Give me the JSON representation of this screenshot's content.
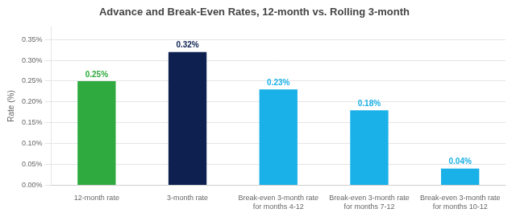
{
  "chart_data": {
    "type": "bar",
    "title": "Advance and Break-Even Rates, 12-month vs. Rolling 3-month",
    "categories": [
      "12-month rate",
      "3-month rate",
      "Break-even 3-month rate\nfor months 4-12",
      "Break-even 3-month rate\nfor months 7-12",
      "Break-even 3-month rate\nfor months 10-12"
    ],
    "values": [
      0.0025,
      0.0032,
      0.0023,
      0.0018,
      0.0004
    ],
    "value_labels": [
      "0.25%",
      "0.32%",
      "0.23%",
      "0.18%",
      "0.04%"
    ],
    "data_labels": true,
    "colors": [
      "#2eaa3e",
      "#0d2050",
      "#1ab0e8",
      "#1ab0e8",
      "#1ab0e8"
    ],
    "ylabel": "Rate (%)",
    "ylim": [
      0,
      0.0038
    ],
    "yticks": [
      {
        "value": 0.0,
        "label": "0.00%"
      },
      {
        "value": 0.0005,
        "label": "0.05%"
      },
      {
        "value": 0.001,
        "label": "0.10%"
      },
      {
        "value": 0.0015,
        "label": "0.15%"
      },
      {
        "value": 0.002,
        "label": "0.20%"
      },
      {
        "value": 0.0025,
        "label": "0.25%"
      },
      {
        "value": 0.003,
        "label": "0.30%"
      },
      {
        "value": 0.0035,
        "label": "0.35%"
      }
    ],
    "grid": true
  }
}
